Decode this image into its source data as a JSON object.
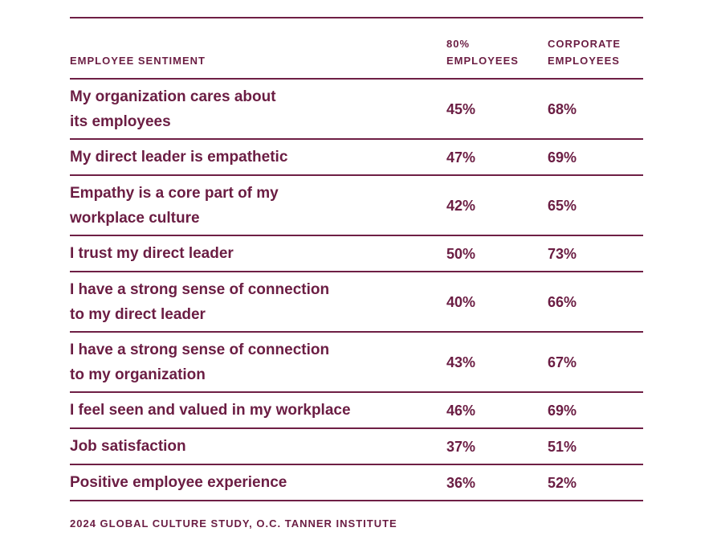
{
  "table": {
    "headers": {
      "sentiment": "EMPLOYEE SENTIMENT",
      "col1_line1": "80%",
      "col1_line2": "EMPLOYEES",
      "col2_line1": "CORPORATE",
      "col2_line2": "EMPLOYEES"
    },
    "rows": [
      {
        "line1": "My organization cares about",
        "line2": "its employees",
        "eighty": "45%",
        "corporate": "68%"
      },
      {
        "line1": "My direct leader is empathetic",
        "line2": "",
        "eighty": "47%",
        "corporate": "69%"
      },
      {
        "line1": "Empathy is a core part of my",
        "line2": "workplace culture",
        "eighty": "42%",
        "corporate": "65%"
      },
      {
        "line1": "I trust my direct leader",
        "line2": "",
        "eighty": "50%",
        "corporate": "73%"
      },
      {
        "line1": "I have a strong sense of connection",
        "line2": "to my direct leader",
        "eighty": "40%",
        "corporate": "66%"
      },
      {
        "line1": "I have a strong sense of connection",
        "line2": "to my organization",
        "eighty": "43%",
        "corporate": "67%"
      },
      {
        "line1": "I feel seen and valued in my workplace",
        "line2": "",
        "eighty": "46%",
        "corporate": "69%"
      },
      {
        "line1": "Job satisfaction",
        "line2": "",
        "eighty": "37%",
        "corporate": "51%"
      },
      {
        "line1": "Positive employee experience",
        "line2": "",
        "eighty": "36%",
        "corporate": "52%"
      }
    ]
  },
  "footer": {
    "source": "2024 GLOBAL CULTURE STUDY, O.C. TANNER INSTITUTE"
  },
  "colors": {
    "accent": "#6b1d43"
  }
}
